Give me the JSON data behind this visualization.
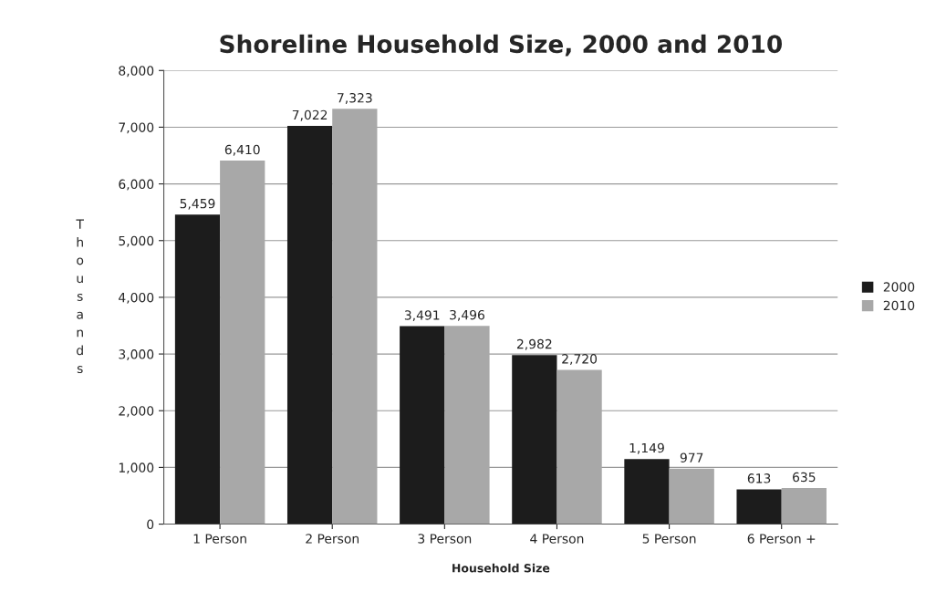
{
  "chart_data": {
    "type": "bar",
    "title": "Shoreline Household Size, 2000 and 2010",
    "xlabel": "Household Size",
    "ylabel": "Thousands",
    "categories": [
      "1 Person",
      "2 Person",
      "3 Person",
      "4 Person",
      "5 Person",
      "6 Person +"
    ],
    "series": [
      {
        "name": "2000",
        "color": "#1c1c1c",
        "values": [
          5459,
          7022,
          3491,
          2982,
          1149,
          613
        ],
        "value_labels": [
          "5,459",
          "7,022",
          "3,491",
          "2,982",
          "1,149",
          "613"
        ]
      },
      {
        "name": "2010",
        "color": "#a8a8a8",
        "values": [
          6410,
          7323,
          3496,
          2720,
          977,
          635
        ],
        "value_labels": [
          "6,410",
          "7,323",
          "3,496",
          "2,720",
          "977",
          "635"
        ]
      }
    ],
    "ylim": [
      0,
      8000
    ],
    "yticks": [
      {
        "value": 0,
        "label": "0"
      },
      {
        "value": 1000,
        "label": "1,000"
      },
      {
        "value": 2000,
        "label": "2,000"
      },
      {
        "value": 3000,
        "label": "3,000"
      },
      {
        "value": 4000,
        "label": "4,000"
      },
      {
        "value": 5000,
        "label": "5,000"
      },
      {
        "value": 6000,
        "label": "6,000"
      },
      {
        "value": 7000,
        "label": "7,000"
      },
      {
        "value": 8000,
        "label": "8,000"
      }
    ],
    "grid": "y",
    "legend": "right"
  }
}
